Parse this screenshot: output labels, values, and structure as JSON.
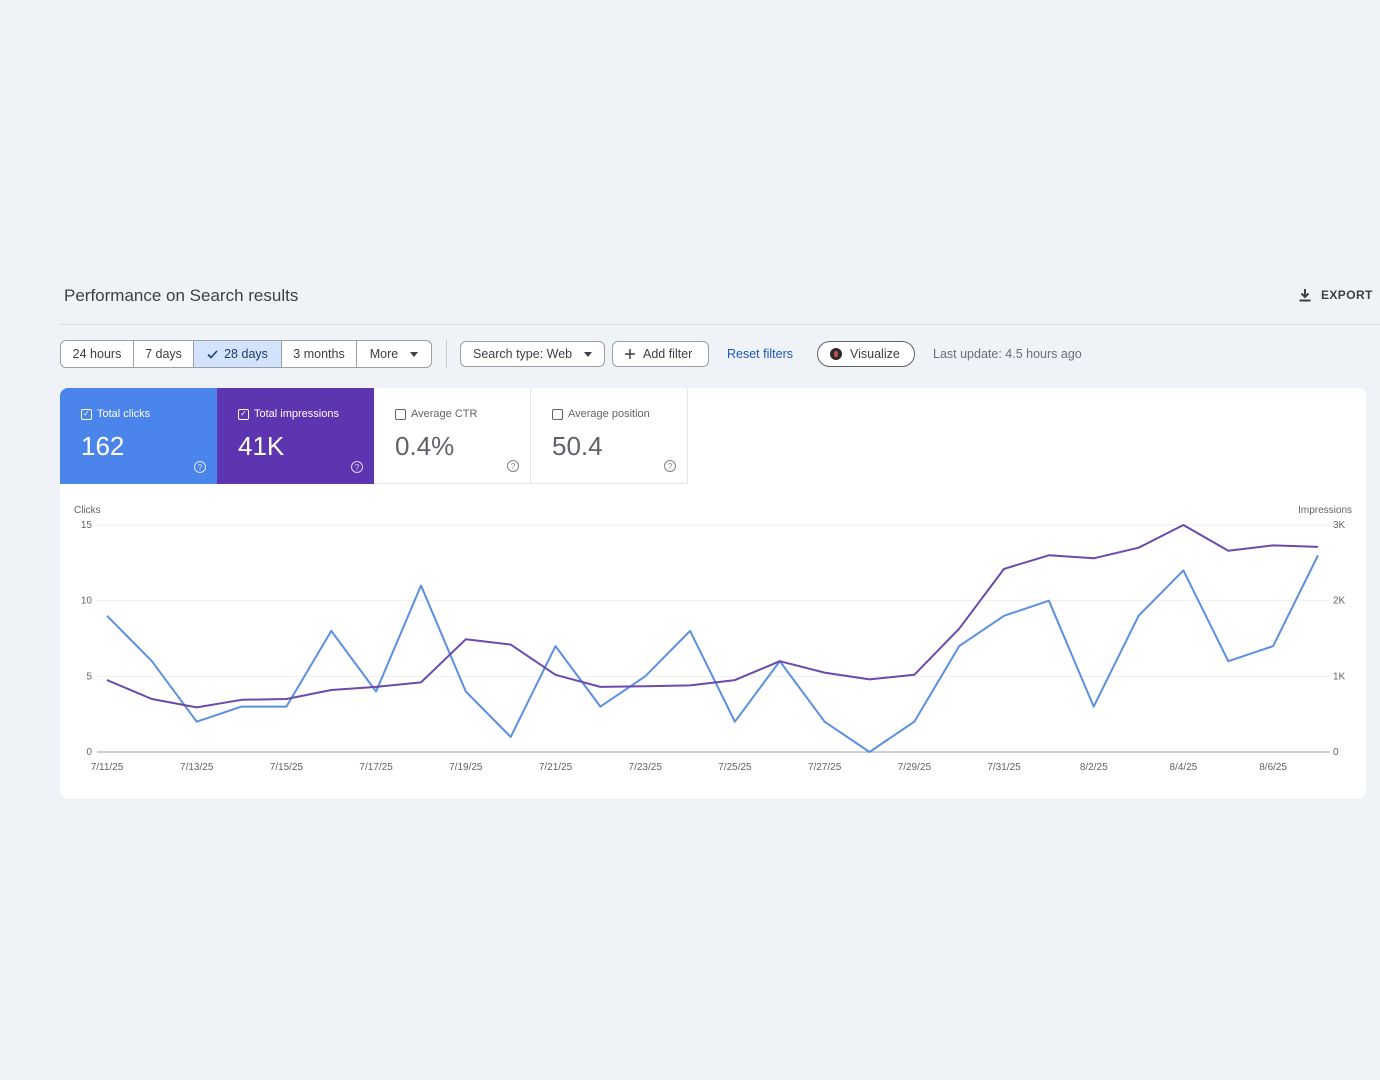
{
  "header": {
    "title": "Performance on Search results",
    "export_label": "EXPORT"
  },
  "toolbar": {
    "ranges": [
      {
        "label": "24 hours",
        "active": false
      },
      {
        "label": "7 days",
        "active": false
      },
      {
        "label": "28 days",
        "active": true
      },
      {
        "label": "3 months",
        "active": false
      },
      {
        "label": "More",
        "active": false
      }
    ],
    "search_type": "Search type: Web",
    "add_filter": "Add filter",
    "reset_filters": "Reset filters",
    "visualize": "Visualize",
    "last_update": "Last update: 4.5 hours ago"
  },
  "metrics": {
    "clicks": {
      "label": "Total clicks",
      "value": "162",
      "checked": true,
      "color": "#4b84ea"
    },
    "impressions": {
      "label": "Total impressions",
      "value": "41K",
      "checked": true,
      "color": "#5e35b1"
    },
    "ctr": {
      "label": "Average CTR",
      "value": "0.4%",
      "checked": false
    },
    "position": {
      "label": "Average position",
      "value": "50.4",
      "checked": false
    }
  },
  "chart_data": {
    "type": "line",
    "x": [
      "7/11/25",
      "7/12/25",
      "7/13/25",
      "7/14/25",
      "7/15/25",
      "7/16/25",
      "7/17/25",
      "7/18/25",
      "7/19/25",
      "7/20/25",
      "7/21/25",
      "7/22/25",
      "7/23/25",
      "7/24/25",
      "7/25/25",
      "7/26/25",
      "7/27/25",
      "7/28/25",
      "7/29/25",
      "7/30/25",
      "7/31/25",
      "8/1/25",
      "8/2/25",
      "8/3/25",
      "8/4/25",
      "8/5/25",
      "8/6/25",
      "8/7/25"
    ],
    "x_tick_labels": [
      "7/11/25",
      "7/13/25",
      "7/15/25",
      "7/17/25",
      "7/19/25",
      "7/21/25",
      "7/23/25",
      "7/25/25",
      "7/27/25",
      "7/29/25",
      "7/31/25",
      "8/2/25",
      "8/4/25",
      "8/6/25"
    ],
    "series": [
      {
        "name": "Clicks",
        "axis": "left",
        "color": "#5b8fe0",
        "values": [
          9,
          6,
          2,
          3,
          3,
          8,
          4,
          11,
          4,
          1,
          7,
          3,
          5,
          8,
          2,
          6,
          2,
          0,
          2,
          7,
          9,
          10,
          3,
          9,
          12,
          6,
          7,
          13
        ]
      },
      {
        "name": "Impressions",
        "axis": "right",
        "color": "#6a4aad",
        "values": [
          950,
          700,
          590,
          690,
          700,
          820,
          860,
          920,
          1490,
          1420,
          1020,
          860,
          870,
          880,
          950,
          1200,
          1050,
          960,
          1020,
          1630,
          2420,
          2600,
          2560,
          2700,
          3000,
          2660,
          2730,
          2710
        ]
      }
    ],
    "y_left": {
      "label": "Clicks",
      "lim": [
        0,
        15
      ],
      "ticks": [
        "0",
        "5",
        "10",
        "15"
      ]
    },
    "y_right": {
      "label": "Impressions",
      "lim": [
        0,
        3000
      ],
      "ticks": [
        "0",
        "1K",
        "2K",
        "3K"
      ]
    },
    "grid": true
  }
}
